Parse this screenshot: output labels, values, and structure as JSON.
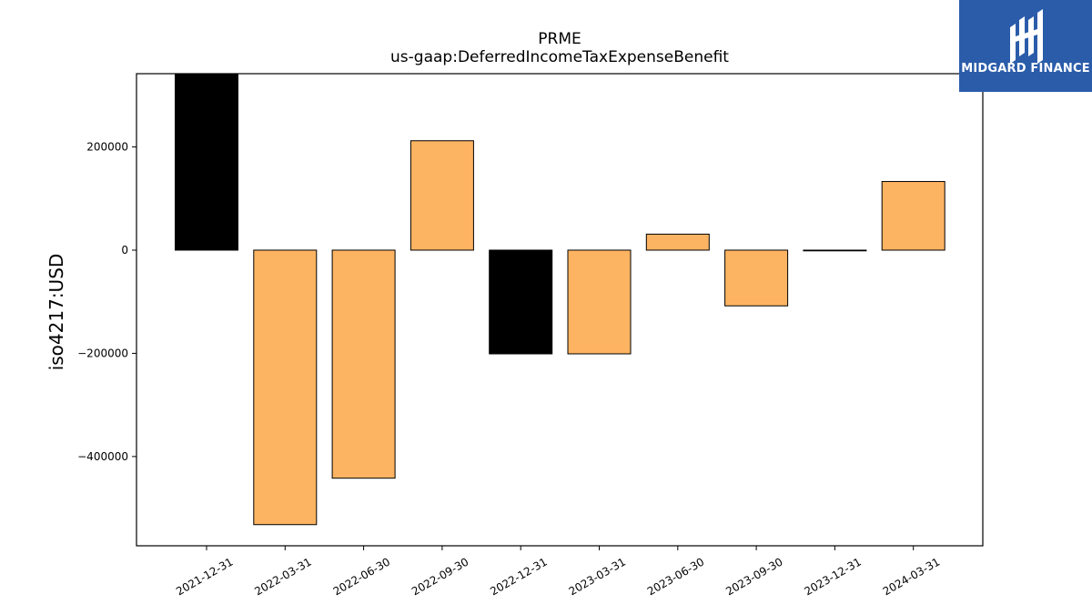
{
  "chart_data": {
    "type": "bar",
    "title": "PRME",
    "subtitle": "us-gaap:DeferredIncomeTaxExpenseBenefit",
    "xlabel": "",
    "ylabel": "iso4217:USD",
    "categories": [
      "2021-12-31",
      "2022-03-31",
      "2022-06-30",
      "2022-09-30",
      "2022-12-31",
      "2023-03-31",
      "2023-06-30",
      "2023-09-30",
      "2023-12-31",
      "2024-03-31"
    ],
    "values": [
      345000,
      -532000,
      -442000,
      212000,
      -201000,
      -201000,
      31000,
      -108000,
      0,
      133000
    ],
    "bar_colors": [
      "#000000",
      "#fdb462",
      "#fdb462",
      "#fdb462",
      "#000000",
      "#fdb462",
      "#fdb462",
      "#fdb462",
      "#fdb462",
      "#fdb462"
    ],
    "yticks": [
      -400000,
      -200000,
      0,
      200000
    ],
    "ylim": [
      -573000,
      342000
    ],
    "grid": false,
    "legend": "none"
  },
  "logo": {
    "text": "MIDGARD FINANCE"
  }
}
